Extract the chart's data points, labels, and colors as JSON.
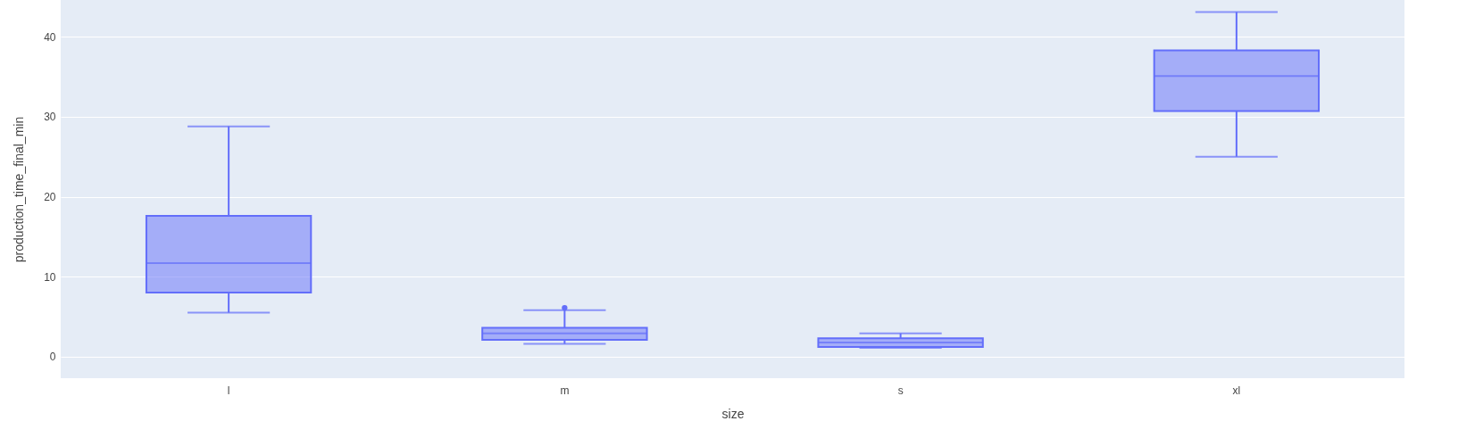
{
  "chart_data": {
    "type": "box",
    "xlabel": "size",
    "ylabel": "production_time_final_min",
    "categories": [
      "l",
      "m",
      "s",
      "xl"
    ],
    "series": [
      {
        "color": "#636efa",
        "boxes": [
          {
            "low": 5.5,
            "q1": 8.0,
            "median": 11.7,
            "q3": 17.6,
            "high": 28.8
          },
          {
            "low": 1.6,
            "q1": 2.1,
            "median": 2.9,
            "q3": 3.6,
            "high": 5.8,
            "outliers": [
              6.1
            ]
          },
          {
            "low": 1.1,
            "q1": 1.2,
            "median": 1.75,
            "q3": 2.3,
            "high": 2.9
          },
          {
            "low": 25.0,
            "q1": 30.7,
            "median": 35.1,
            "q3": 38.3,
            "high": 43.1
          }
        ]
      }
    ],
    "ylim": [
      -2.7,
      44.6
    ],
    "yticks": [
      0,
      10,
      20,
      30,
      40
    ],
    "grid": "y"
  }
}
